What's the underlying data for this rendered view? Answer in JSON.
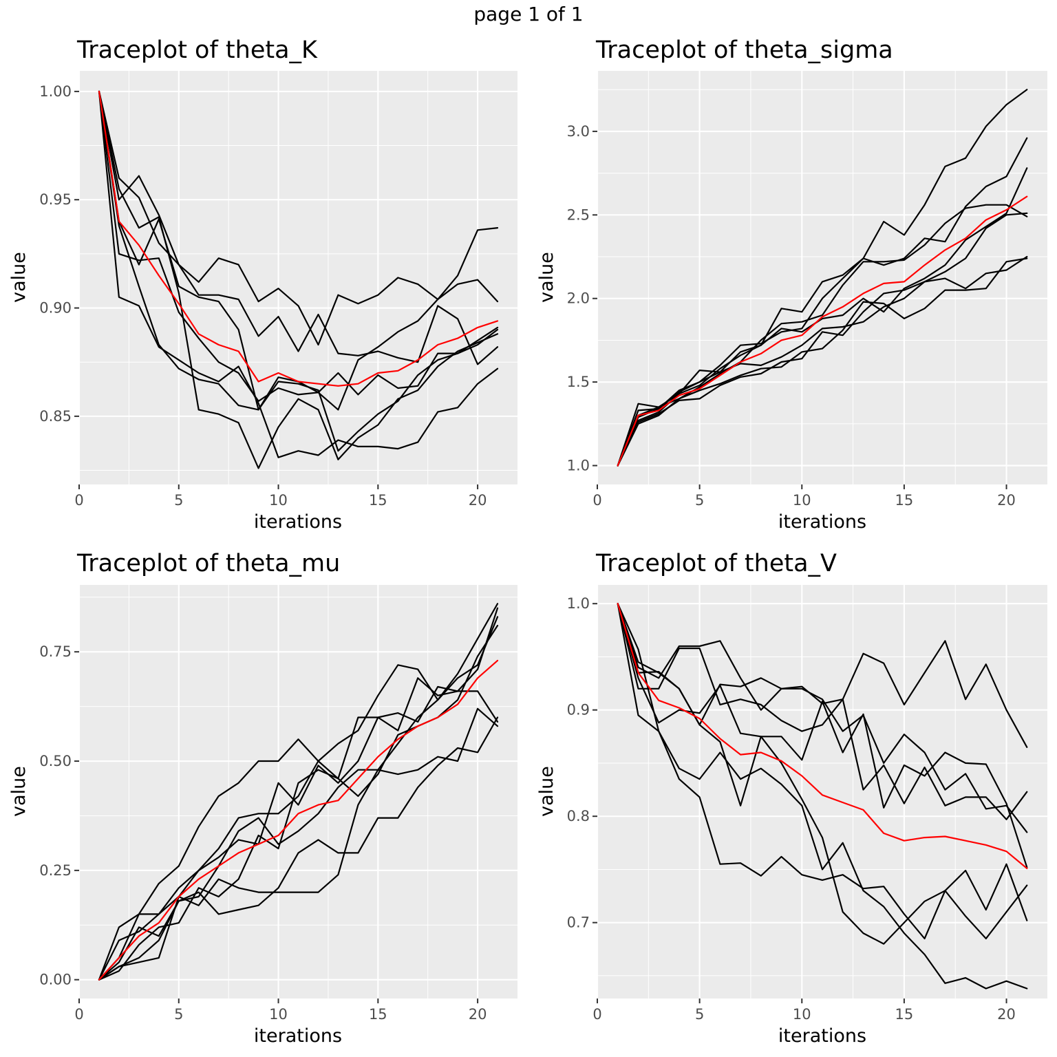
{
  "page": {
    "title": "page 1 of 1"
  },
  "colors": {
    "chain": "#000000",
    "mean": "#ff0000",
    "panel_background": "#ebebeb",
    "grid": "#ffffff"
  },
  "chart_data": [
    {
      "type": "line",
      "title": "Traceplot of theta_K",
      "xlabel": "iterations",
      "ylabel": "value",
      "xlim": [
        0,
        22
      ],
      "ylim": [
        0.8185,
        1.0095
      ],
      "xticks": [
        0,
        5,
        10,
        15,
        20
      ],
      "xtick_labels": [
        "0",
        "5",
        "10",
        "15",
        "20"
      ],
      "yticks": [
        0.85,
        0.9,
        0.95,
        1.0
      ],
      "ytick_labels": [
        "0.85",
        "0.90",
        "0.95",
        "1.00"
      ],
      "grid": true,
      "legend": "none",
      "x": [
        1,
        2,
        3,
        4,
        5,
        6,
        7,
        8,
        9,
        10,
        11,
        12,
        13,
        14,
        15,
        16,
        17,
        18,
        19,
        20,
        21
      ],
      "series": [
        {
          "values": [
            1.0,
            0.95,
            0.961,
            0.943,
            0.92,
            0.912,
            0.923,
            0.92,
            0.903,
            0.909,
            0.901,
            0.883,
            0.906,
            0.902,
            0.906,
            0.914,
            0.911,
            0.904,
            0.915,
            0.936,
            0.937
          ]
        },
        {
          "values": [
            1.0,
            0.96,
            0.951,
            0.93,
            0.92,
            0.906,
            0.906,
            0.904,
            0.887,
            0.896,
            0.88,
            0.897,
            0.879,
            0.878,
            0.88,
            0.877,
            0.875,
            0.901,
            0.895,
            0.874,
            0.882
          ]
        },
        {
          "values": [
            1.0,
            0.94,
            0.92,
            0.941,
            0.91,
            0.905,
            0.903,
            0.89,
            0.853,
            0.868,
            0.866,
            0.861,
            0.87,
            0.86,
            0.869,
            0.863,
            0.864,
            0.879,
            0.879,
            0.885,
            0.891
          ]
        },
        {
          "values": [
            1.0,
            0.925,
            0.922,
            0.923,
            0.898,
            0.886,
            0.875,
            0.87,
            0.857,
            0.863,
            0.86,
            0.861,
            0.853,
            0.876,
            0.882,
            0.889,
            0.894,
            0.904,
            0.911,
            0.913,
            0.903
          ]
        },
        {
          "values": [
            1.0,
            0.905,
            0.901,
            0.882,
            0.876,
            0.87,
            0.866,
            0.873,
            0.856,
            0.831,
            0.834,
            0.832,
            0.839,
            0.836,
            0.836,
            0.835,
            0.838,
            0.852,
            0.854,
            0.865,
            0.872
          ]
        },
        {
          "values": [
            1.0,
            0.938,
            0.91,
            0.883,
            0.872,
            0.867,
            0.865,
            0.855,
            0.853,
            0.866,
            0.865,
            0.862,
            0.834,
            0.843,
            0.851,
            0.857,
            0.869,
            0.876,
            0.879,
            0.883,
            0.89
          ]
        },
        {
          "values": [
            1.0,
            0.955,
            0.937,
            0.942,
            0.907,
            0.853,
            0.851,
            0.847,
            0.826,
            0.845,
            0.858,
            0.853,
            0.83,
            0.84,
            0.846,
            0.858,
            0.862,
            0.873,
            0.88,
            0.884,
            0.888
          ]
        },
        {
          "name": "mean",
          "color": "#ff0000",
          "values": [
            1.0,
            0.94,
            0.929,
            0.915,
            0.902,
            0.888,
            0.883,
            0.88,
            0.866,
            0.87,
            0.866,
            0.865,
            0.864,
            0.865,
            0.87,
            0.871,
            0.876,
            0.883,
            0.886,
            0.891,
            0.894
          ]
        }
      ]
    },
    {
      "type": "line",
      "title": "Traceplot of theta_sigma",
      "xlabel": "iterations",
      "ylabel": "value",
      "xlim": [
        0,
        22
      ],
      "ylim": [
        0.887,
        3.362
      ],
      "xticks": [
        0,
        5,
        10,
        15,
        20
      ],
      "xtick_labels": [
        "0",
        "5",
        "10",
        "15",
        "20"
      ],
      "yticks": [
        1.0,
        1.5,
        2.0,
        2.5,
        3.0
      ],
      "ytick_labels": [
        "1.0",
        "1.5",
        "2.0",
        "2.5",
        "3.0"
      ],
      "grid": true,
      "legend": "none",
      "x": [
        1,
        2,
        3,
        4,
        5,
        6,
        7,
        8,
        9,
        10,
        11,
        12,
        13,
        14,
        15,
        16,
        17,
        18,
        19,
        20,
        21
      ],
      "series": [
        {
          "values": [
            1.0,
            1.37,
            1.35,
            1.43,
            1.57,
            1.56,
            1.68,
            1.72,
            1.94,
            1.92,
            2.1,
            2.14,
            2.24,
            2.46,
            2.38,
            2.56,
            2.79,
            2.84,
            3.03,
            3.16,
            3.25
          ]
        },
        {
          "values": [
            1.0,
            1.33,
            1.34,
            1.45,
            1.5,
            1.6,
            1.72,
            1.73,
            1.8,
            1.82,
            2.0,
            2.12,
            2.24,
            2.2,
            2.24,
            2.36,
            2.34,
            2.55,
            2.67,
            2.73,
            2.96
          ]
        },
        {
          "values": [
            1.0,
            1.3,
            1.35,
            1.4,
            1.47,
            1.55,
            1.62,
            1.75,
            1.85,
            1.86,
            1.9,
            2.08,
            2.22,
            2.22,
            2.23,
            2.32,
            2.45,
            2.54,
            2.56,
            2.56,
            2.49
          ]
        },
        {
          "values": [
            1.0,
            1.27,
            1.32,
            1.43,
            1.48,
            1.58,
            1.66,
            1.72,
            1.82,
            1.8,
            1.88,
            1.9,
            2.0,
            1.92,
            2.06,
            2.12,
            2.2,
            2.35,
            2.43,
            2.51,
            2.78
          ]
        },
        {
          "values": [
            1.0,
            1.29,
            1.34,
            1.44,
            1.5,
            1.56,
            1.61,
            1.6,
            1.65,
            1.72,
            1.82,
            1.83,
            1.86,
            1.95,
            2.0,
            2.1,
            2.16,
            2.24,
            2.42,
            2.5,
            2.51
          ]
        },
        {
          "values": [
            1.0,
            1.25,
            1.3,
            1.4,
            1.45,
            1.49,
            1.54,
            1.58,
            1.59,
            1.68,
            1.7,
            1.81,
            1.98,
            1.97,
            1.88,
            1.94,
            2.05,
            2.05,
            2.06,
            2.22,
            2.24
          ]
        },
        {
          "values": [
            1.0,
            1.26,
            1.31,
            1.39,
            1.4,
            1.48,
            1.53,
            1.55,
            1.62,
            1.64,
            1.8,
            1.78,
            1.92,
            2.03,
            2.05,
            2.1,
            2.12,
            2.06,
            2.15,
            2.17,
            2.25
          ]
        },
        {
          "name": "mean",
          "color": "#ff0000",
          "values": [
            1.0,
            1.3,
            1.33,
            1.42,
            1.46,
            1.54,
            1.62,
            1.67,
            1.75,
            1.78,
            1.89,
            1.95,
            2.03,
            2.09,
            2.1,
            2.2,
            2.29,
            2.36,
            2.47,
            2.53,
            2.61
          ]
        }
      ]
    },
    {
      "type": "line",
      "title": "Traceplot of theta_mu",
      "xlabel": "iterations",
      "ylabel": "value",
      "xlim": [
        0,
        22
      ],
      "ylim": [
        -0.043,
        0.903
      ],
      "xticks": [
        0,
        5,
        10,
        15,
        20
      ],
      "xtick_labels": [
        "0",
        "5",
        "10",
        "15",
        "20"
      ],
      "yticks": [
        0.0,
        0.25,
        0.5,
        0.75
      ],
      "ytick_labels": [
        "0.00",
        "0.25",
        "0.50",
        "0.75"
      ],
      "grid": true,
      "legend": "none",
      "x": [
        1,
        2,
        3,
        4,
        5,
        6,
        7,
        8,
        9,
        10,
        11,
        12,
        13,
        14,
        15,
        16,
        17,
        18,
        19,
        20,
        21
      ],
      "series": [
        {
          "values": [
            0.0,
            0.05,
            0.15,
            0.22,
            0.26,
            0.35,
            0.42,
            0.45,
            0.5,
            0.5,
            0.55,
            0.5,
            0.54,
            0.57,
            0.65,
            0.72,
            0.71,
            0.64,
            0.7,
            0.78,
            0.86
          ]
        },
        {
          "values": [
            0.0,
            0.12,
            0.15,
            0.15,
            0.19,
            0.25,
            0.3,
            0.37,
            0.38,
            0.38,
            0.42,
            0.5,
            0.46,
            0.6,
            0.6,
            0.57,
            0.69,
            0.65,
            0.66,
            0.66,
            0.59
          ]
        },
        {
          "values": [
            0.0,
            0.09,
            0.11,
            0.15,
            0.21,
            0.25,
            0.28,
            0.32,
            0.31,
            0.45,
            0.4,
            0.49,
            0.45,
            0.5,
            0.6,
            0.61,
            0.59,
            0.67,
            0.66,
            0.71,
            0.85
          ]
        },
        {
          "values": [
            0.0,
            0.03,
            0.05,
            0.09,
            0.18,
            0.19,
            0.26,
            0.34,
            0.37,
            0.31,
            0.34,
            0.38,
            0.44,
            0.48,
            0.48,
            0.47,
            0.48,
            0.51,
            0.5,
            0.62,
            0.58
          ]
        },
        {
          "values": [
            0.0,
            0.03,
            0.04,
            0.05,
            0.19,
            0.17,
            0.23,
            0.21,
            0.2,
            0.2,
            0.2,
            0.2,
            0.24,
            0.4,
            0.48,
            0.54,
            0.6,
            0.64,
            0.69,
            0.72,
            0.83
          ]
        },
        {
          "values": [
            0.0,
            0.04,
            0.12,
            0.1,
            0.18,
            0.2,
            0.15,
            0.16,
            0.17,
            0.21,
            0.29,
            0.32,
            0.29,
            0.29,
            0.37,
            0.37,
            0.44,
            0.49,
            0.53,
            0.52,
            0.6
          ]
        },
        {
          "values": [
            0.0,
            0.02,
            0.08,
            0.12,
            0.13,
            0.21,
            0.19,
            0.23,
            0.33,
            0.3,
            0.45,
            0.48,
            0.46,
            0.42,
            0.47,
            0.56,
            0.58,
            0.6,
            0.64,
            0.74,
            0.81
          ]
        },
        {
          "name": "mean",
          "color": "#ff0000",
          "values": [
            0.0,
            0.05,
            0.1,
            0.13,
            0.19,
            0.23,
            0.26,
            0.29,
            0.31,
            0.33,
            0.38,
            0.4,
            0.41,
            0.46,
            0.51,
            0.55,
            0.58,
            0.6,
            0.63,
            0.69,
            0.73
          ]
        }
      ]
    },
    {
      "type": "line",
      "title": "Traceplot of theta_V",
      "xlabel": "iterations",
      "ylabel": "value",
      "xlim": [
        0,
        22
      ],
      "ylim": [
        0.6286,
        1.0176
      ],
      "xticks": [
        0,
        5,
        10,
        15,
        20
      ],
      "xtick_labels": [
        "0",
        "5",
        "10",
        "15",
        "20"
      ],
      "yticks": [
        0.7,
        0.8,
        0.9,
        1.0
      ],
      "ytick_labels": [
        "0.7",
        "0.8",
        "0.9",
        "1.0"
      ],
      "grid": true,
      "legend": "none",
      "x": [
        1,
        2,
        3,
        4,
        5,
        6,
        7,
        8,
        9,
        10,
        11,
        12,
        13,
        14,
        15,
        16,
        17,
        18,
        19,
        20,
        21
      ],
      "series": [
        {
          "values": [
            1.0,
            0.94,
            0.93,
            0.96,
            0.96,
            0.965,
            0.93,
            0.9,
            0.92,
            0.92,
            0.91,
            0.88,
            0.895,
            0.85,
            0.877,
            0.86,
            0.825,
            0.84,
            0.807,
            0.81,
            0.785
          ]
        },
        {
          "values": [
            1.0,
            0.935,
            0.936,
            0.92,
            0.886,
            0.924,
            0.922,
            0.93,
            0.92,
            0.922,
            0.906,
            0.91,
            0.953,
            0.944,
            0.905,
            0.935,
            0.965,
            0.91,
            0.943,
            0.9,
            0.865
          ]
        },
        {
          "values": [
            1.0,
            0.92,
            0.92,
            0.958,
            0.958,
            0.905,
            0.91,
            0.905,
            0.89,
            0.88,
            0.886,
            0.91,
            0.825,
            0.848,
            0.812,
            0.846,
            0.81,
            0.818,
            0.818,
            0.797,
            0.823
          ]
        },
        {
          "values": [
            1.0,
            0.93,
            0.888,
            0.9,
            0.897,
            0.923,
            0.878,
            0.875,
            0.875,
            0.853,
            0.908,
            0.86,
            0.896,
            0.808,
            0.848,
            0.838,
            0.86,
            0.85,
            0.849,
            0.812,
            0.752
          ]
        },
        {
          "values": [
            1.0,
            0.945,
            0.935,
            0.92,
            0.886,
            0.87,
            0.81,
            0.875,
            0.85,
            0.816,
            0.78,
            0.71,
            0.69,
            0.68,
            0.7,
            0.72,
            0.73,
            0.749,
            0.712,
            0.755,
            0.702
          ]
        },
        {
          "values": [
            1.0,
            0.957,
            0.88,
            0.835,
            0.818,
            0.755,
            0.756,
            0.744,
            0.762,
            0.745,
            0.74,
            0.745,
            0.732,
            0.734,
            0.708,
            0.685,
            0.73,
            0.706,
            0.685,
            0.71,
            0.735
          ]
        },
        {
          "values": [
            1.0,
            0.895,
            0.88,
            0.845,
            0.835,
            0.86,
            0.835,
            0.845,
            0.83,
            0.81,
            0.75,
            0.775,
            0.73,
            0.715,
            0.69,
            0.67,
            0.643,
            0.648,
            0.638,
            0.645,
            0.638
          ]
        },
        {
          "name": "mean",
          "color": "#ff0000",
          "values": [
            1.0,
            0.935,
            0.909,
            0.902,
            0.892,
            0.873,
            0.858,
            0.86,
            0.852,
            0.838,
            0.82,
            0.813,
            0.806,
            0.784,
            0.777,
            0.78,
            0.781,
            0.777,
            0.773,
            0.767,
            0.751
          ]
        }
      ]
    }
  ]
}
